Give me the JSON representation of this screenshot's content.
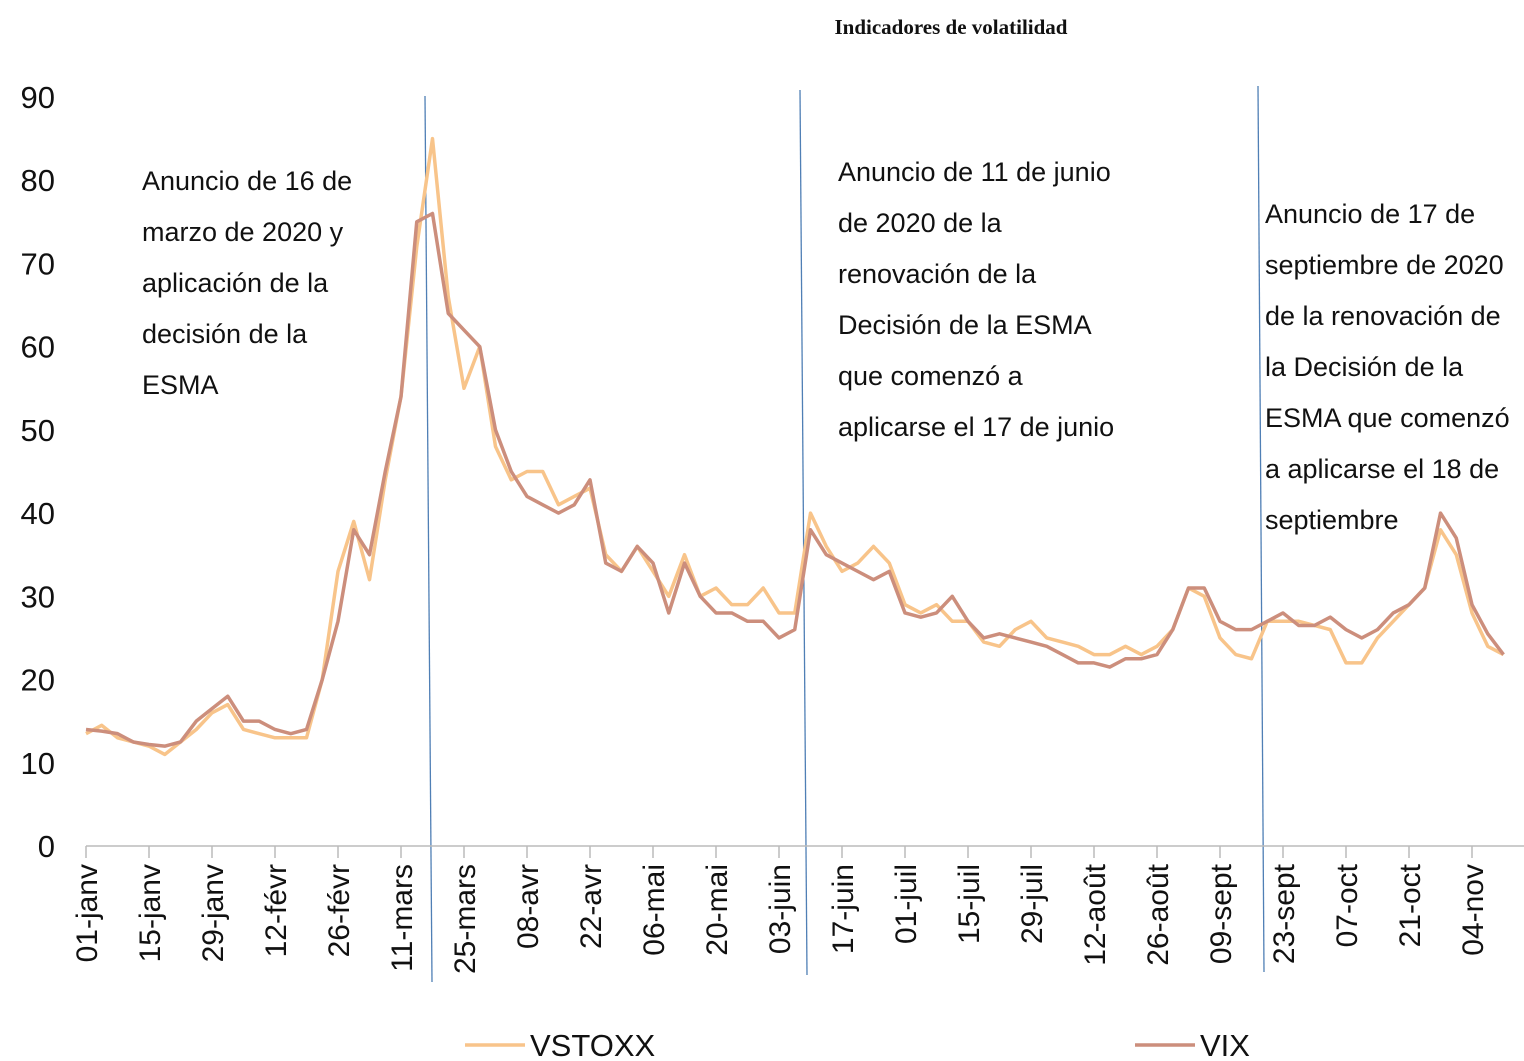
{
  "chart_data": {
    "type": "line",
    "title": "Indicadores de volatilidad",
    "categories": [
      "01-janv",
      null,
      null,
      null,
      "15-janv",
      null,
      null,
      null,
      "29-janv",
      null,
      null,
      null,
      "12-févr",
      null,
      null,
      null,
      "26-févr",
      null,
      null,
      null,
      "11-mars",
      null,
      null,
      null,
      "25-mars",
      null,
      null,
      null,
      "08-avr",
      null,
      null,
      null,
      "22-avr",
      null,
      null,
      null,
      "06-mai",
      null,
      null,
      null,
      "20-mai",
      null,
      null,
      null,
      "03-juin",
      null,
      null,
      null,
      "17-juin",
      null,
      null,
      null,
      "01-juil",
      null,
      null,
      null,
      "15-juil",
      null,
      null,
      null,
      "29-juil",
      null,
      null,
      null,
      "12-août",
      null,
      null,
      null,
      "26-août",
      null,
      null,
      null,
      "09-sept",
      null,
      null,
      null,
      "23-sept",
      null,
      null,
      null,
      "07-oct",
      null,
      null,
      null,
      "21-oct",
      null,
      null,
      null,
      "04-nov",
      null,
      null
    ],
    "series": [
      {
        "name": "VSTOXX",
        "color": "#f8c48a",
        "values": [
          13.5,
          14.5,
          13,
          12.5,
          12,
          11,
          12.5,
          14,
          16,
          17,
          14,
          13.5,
          13,
          13,
          13,
          20,
          33,
          39,
          32,
          44,
          54,
          72,
          85,
          66,
          55,
          60,
          48,
          44,
          45,
          45,
          41,
          42,
          43,
          35,
          33,
          36,
          33,
          30,
          35,
          30,
          31,
          29,
          29,
          31,
          28,
          28,
          40,
          36,
          33,
          34,
          36,
          34,
          29,
          28,
          29,
          27,
          27,
          24.5,
          24,
          26,
          27,
          25,
          24.5,
          24,
          23,
          23,
          24,
          23,
          24,
          26,
          31,
          30,
          25,
          23,
          22.5,
          27,
          27,
          27,
          26.5,
          26,
          22,
          22,
          25,
          27,
          29,
          31,
          38,
          35,
          28,
          24,
          23
        ]
      },
      {
        "name": "VIX",
        "color": "#cc8e7c",
        "values": [
          14,
          13.8,
          13.5,
          12.5,
          12.2,
          12,
          12.5,
          15,
          16.5,
          18,
          15,
          15,
          14,
          13.5,
          14,
          20,
          27,
          38,
          35,
          45,
          54,
          75,
          76,
          64,
          62,
          60,
          50,
          45,
          42,
          41,
          40,
          41,
          44,
          34,
          33,
          36,
          34,
          28,
          34,
          30,
          28,
          28,
          27,
          27,
          25,
          26,
          38,
          35,
          34,
          33,
          32,
          33,
          28,
          27.5,
          28,
          30,
          27,
          25,
          25.5,
          25,
          24.5,
          24,
          23,
          22,
          22,
          21.5,
          22.5,
          22.5,
          23,
          26,
          31,
          31,
          27,
          26,
          26,
          27,
          28,
          26.5,
          26.5,
          27.5,
          26,
          25,
          26,
          28,
          29,
          31,
          40,
          37,
          29,
          25.5,
          23
        ]
      }
    ],
    "ylim": [
      0,
      90
    ],
    "yticks": [
      0,
      10,
      20,
      30,
      40,
      50,
      60,
      70,
      80,
      90
    ],
    "annotations": [
      [
        "Anuncio de 16 de",
        "marzo de 2020 y",
        "aplicación de la",
        "decisión de la",
        "ESMA"
      ],
      [
        "Anuncio de 11 de junio",
        "de 2020 de la",
        "renovación de la",
        "Decisión de la ESMA",
        "que comenzó a",
        "aplicarse el 17 de junio"
      ],
      [
        "Anuncio de 17 de",
        "septiembre de 2020",
        "de la renovación de",
        "la Decisión de la",
        "ESMA que comenzó",
        "a aplicarse el 18 de",
        "septiembre"
      ]
    ]
  }
}
